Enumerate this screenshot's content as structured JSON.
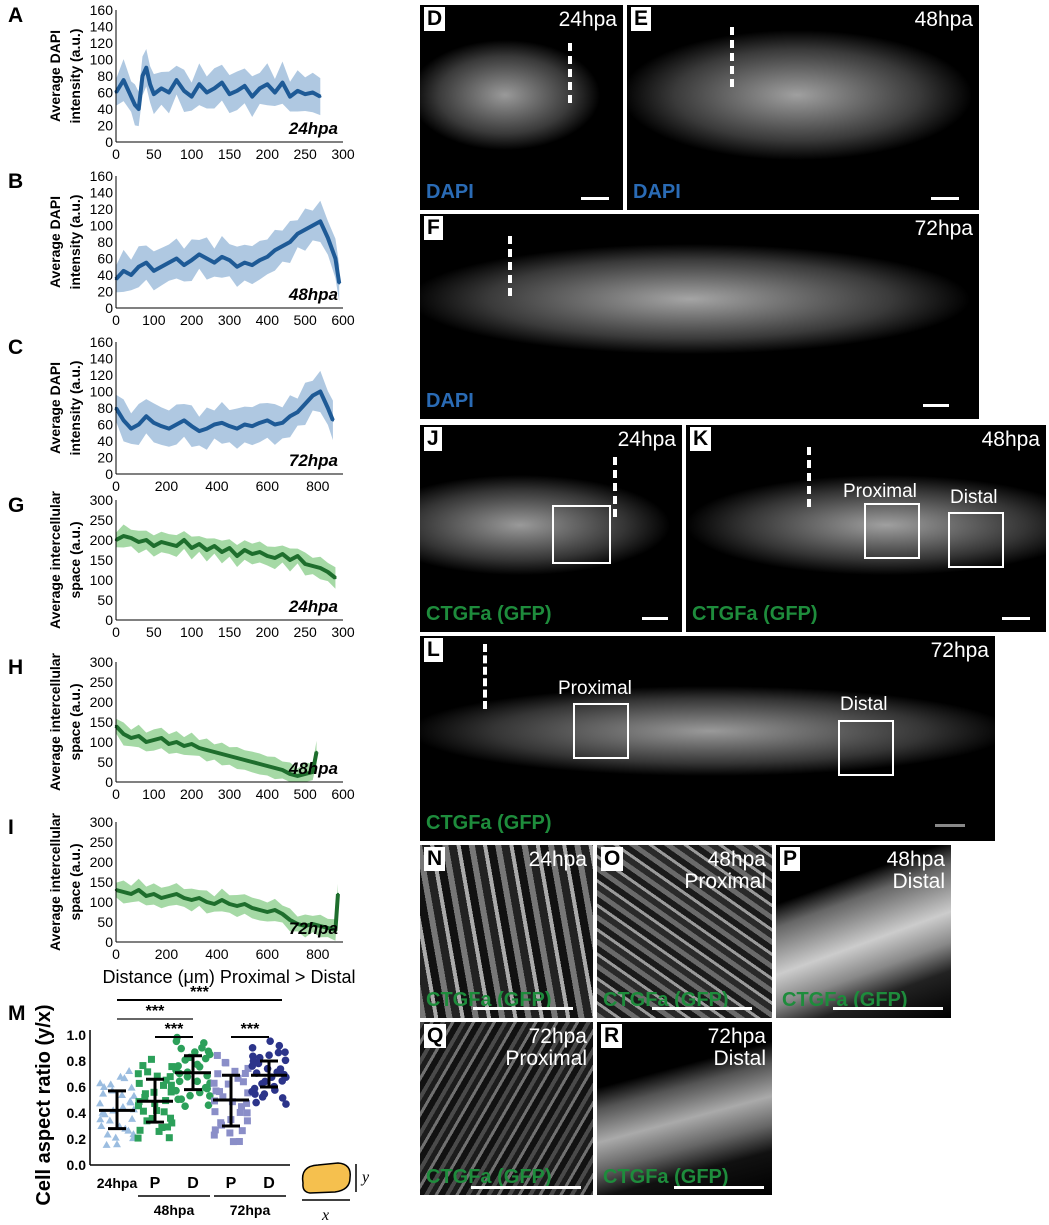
{
  "colors": {
    "dapi": "#1e5a96",
    "dapi_light": "#9bbad9",
    "ctgf": "#1e6e2d",
    "ctgf_light": "#8fcf8f",
    "gfp_label": "#1e8c3c",
    "dapi_label": "#2a6bb5"
  },
  "shared_xlabel": "Distance (μm) Proximal > Distal",
  "chart_data": [
    {
      "panel": "A",
      "type": "line",
      "ylabel": [
        "Average DAPI",
        "intensity (a.u.)"
      ],
      "annotation": "24hpa",
      "xlim": [
        0,
        300
      ],
      "ylim": [
        0,
        160
      ],
      "xticks": [
        0,
        50,
        100,
        150,
        200,
        250,
        300
      ],
      "yticks": [
        0,
        20,
        40,
        60,
        80,
        100,
        120,
        140,
        160
      ],
      "series": [
        {
          "x": [
            0,
            10,
            20,
            25,
            30,
            35,
            40,
            45,
            50,
            60,
            70,
            80,
            90,
            100,
            110,
            120,
            130,
            140,
            150,
            160,
            170,
            180,
            190,
            200,
            210,
            220,
            230,
            240,
            250,
            260,
            270
          ],
          "y": [
            60,
            75,
            55,
            45,
            40,
            80,
            90,
            70,
            58,
            65,
            60,
            75,
            62,
            55,
            70,
            60,
            65,
            72,
            58,
            62,
            68,
            55,
            65,
            70,
            60,
            72,
            55,
            62,
            58,
            60,
            55
          ]
        }
      ]
    },
    {
      "panel": "B",
      "type": "line",
      "ylabel": [
        "Average DAPI",
        "intensity (a.u.)"
      ],
      "annotation": "48hpa",
      "xlim": [
        0,
        600
      ],
      "ylim": [
        0,
        160
      ],
      "xticks": [
        0,
        100,
        200,
        300,
        400,
        500,
        600
      ],
      "yticks": [
        0,
        20,
        40,
        60,
        80,
        100,
        120,
        140,
        160
      ],
      "series": [
        {
          "x": [
            0,
            20,
            40,
            60,
            80,
            100,
            120,
            140,
            160,
            180,
            200,
            220,
            240,
            260,
            280,
            300,
            320,
            340,
            360,
            380,
            400,
            420,
            440,
            460,
            480,
            500,
            520,
            540,
            560,
            580,
            590
          ],
          "y": [
            35,
            45,
            40,
            50,
            55,
            45,
            50,
            55,
            60,
            52,
            58,
            65,
            60,
            55,
            62,
            58,
            50,
            55,
            52,
            58,
            62,
            70,
            75,
            80,
            90,
            95,
            100,
            105,
            85,
            60,
            30
          ]
        }
      ]
    },
    {
      "panel": "C",
      "type": "line",
      "ylabel": [
        "Average DAPI",
        "intensity (a.u.)"
      ],
      "annotation": "72hpa",
      "xlim": [
        0,
        900
      ],
      "ylim": [
        0,
        160
      ],
      "xticks": [
        0,
        200,
        400,
        600,
        800
      ],
      "yticks": [
        0,
        20,
        40,
        60,
        80,
        100,
        120,
        140,
        160
      ],
      "series": [
        {
          "x": [
            0,
            30,
            60,
            90,
            120,
            150,
            180,
            210,
            240,
            270,
            300,
            330,
            360,
            390,
            420,
            450,
            480,
            510,
            540,
            570,
            600,
            630,
            660,
            690,
            720,
            750,
            780,
            810,
            840,
            860
          ],
          "y": [
            80,
            65,
            55,
            60,
            70,
            62,
            58,
            55,
            60,
            65,
            58,
            52,
            55,
            60,
            62,
            58,
            55,
            60,
            58,
            62,
            65,
            60,
            62,
            70,
            75,
            85,
            95,
            100,
            80,
            65
          ]
        }
      ]
    },
    {
      "panel": "G",
      "type": "line",
      "ylabel": [
        "Average intercellular",
        "space (a.u.)"
      ],
      "annotation": "24hpa",
      "xlim": [
        0,
        300
      ],
      "ylim": [
        0,
        300
      ],
      "xticks": [
        0,
        50,
        100,
        150,
        200,
        250,
        300
      ],
      "yticks": [
        0,
        50,
        100,
        150,
        200,
        250,
        300
      ],
      "series": [
        {
          "x": [
            0,
            10,
            20,
            30,
            40,
            50,
            60,
            70,
            80,
            90,
            100,
            110,
            120,
            130,
            140,
            150,
            160,
            170,
            180,
            190,
            200,
            210,
            220,
            230,
            240,
            250,
            260,
            270,
            280,
            290
          ],
          "y": [
            200,
            210,
            205,
            195,
            200,
            185,
            195,
            190,
            185,
            200,
            180,
            190,
            175,
            185,
            170,
            180,
            160,
            175,
            165,
            170,
            160,
            155,
            165,
            150,
            160,
            140,
            135,
            130,
            120,
            105
          ]
        }
      ]
    },
    {
      "panel": "H",
      "type": "line",
      "ylabel": [
        "Average intercellular",
        "space (a.u.)"
      ],
      "annotation": "48hpa",
      "xlim": [
        0,
        600
      ],
      "ylim": [
        0,
        300
      ],
      "xticks": [
        0,
        100,
        200,
        300,
        400,
        500,
        600
      ],
      "yticks": [
        0,
        50,
        100,
        150,
        200,
        250,
        300
      ],
      "series": [
        {
          "x": [
            0,
            20,
            40,
            60,
            80,
            100,
            120,
            140,
            160,
            180,
            200,
            220,
            240,
            260,
            280,
            300,
            320,
            340,
            360,
            380,
            400,
            420,
            440,
            460,
            480,
            500,
            520,
            530
          ],
          "y": [
            140,
            120,
            110,
            115,
            100,
            105,
            110,
            95,
            100,
            90,
            95,
            85,
            80,
            75,
            70,
            65,
            60,
            55,
            50,
            45,
            40,
            35,
            30,
            20,
            15,
            20,
            25,
            75
          ]
        }
      ]
    },
    {
      "panel": "I",
      "type": "line",
      "ylabel": [
        "Average intercellular",
        "space (a.u.)"
      ],
      "annotation": "72hpa",
      "xlim": [
        0,
        900
      ],
      "ylim": [
        0,
        300
      ],
      "xticks": [
        0,
        200,
        400,
        600,
        800
      ],
      "yticks": [
        0,
        50,
        100,
        150,
        200,
        250,
        300
      ],
      "series": [
        {
          "x": [
            0,
            30,
            60,
            90,
            120,
            150,
            180,
            210,
            240,
            270,
            300,
            330,
            360,
            390,
            420,
            450,
            480,
            510,
            540,
            570,
            600,
            630,
            660,
            690,
            720,
            750,
            780,
            810,
            840,
            870,
            880
          ],
          "y": [
            130,
            125,
            120,
            130,
            115,
            120,
            110,
            115,
            120,
            110,
            105,
            110,
            100,
            95,
            105,
            95,
            90,
            95,
            85,
            80,
            75,
            80,
            70,
            55,
            45,
            40,
            45,
            40,
            35,
            30,
            120
          ]
        }
      ]
    },
    {
      "panel": "M",
      "type": "scatter",
      "ylabel": "Cell aspect ratio (y/x)",
      "ylim": [
        0,
        1.0
      ],
      "yticks": [
        "0.0",
        "0.2",
        "0.4",
        "0.6",
        "0.8",
        "1.0"
      ],
      "categories": [
        "24hpa",
        "P",
        "D",
        "P",
        "D"
      ],
      "group_labels": [
        "48hpa",
        "72hpa"
      ],
      "series": [
        {
          "category": "24hpa",
          "median": 0.42,
          "q1": 0.28,
          "q3": 0.57,
          "color": "#9bbde0",
          "marker": "triangle"
        },
        {
          "category": "48hpa P",
          "median": 0.49,
          "q1": 0.33,
          "q3": 0.66,
          "color": "#2ca05a",
          "marker": "square"
        },
        {
          "category": "48hpa D",
          "median": 0.71,
          "q1": 0.58,
          "q3": 0.84,
          "color": "#2ca05a",
          "marker": "circle"
        },
        {
          "category": "72hpa P",
          "median": 0.5,
          "q1": 0.3,
          "q3": 0.69,
          "color": "#8a8ec8",
          "marker": "square"
        },
        {
          "category": "72hpa D",
          "median": 0.69,
          "q1": 0.6,
          "q3": 0.8,
          "color": "#2c348a",
          "marker": "circle"
        }
      ],
      "significance": [
        "***",
        "***",
        "***",
        "***"
      ],
      "axis_symbols": [
        "y",
        "x"
      ]
    }
  ],
  "micrographs": [
    {
      "id": "D",
      "time": "24hpa",
      "stain": "DAPI"
    },
    {
      "id": "E",
      "time": "48hpa",
      "stain": "DAPI"
    },
    {
      "id": "F",
      "time": "72hpa",
      "stain": "DAPI"
    },
    {
      "id": "J",
      "time": "24hpa",
      "stain": "CTGFa (GFP)"
    },
    {
      "id": "K",
      "time": "48hpa",
      "stain": "CTGFa (GFP)",
      "regions": [
        "Proximal",
        "Distal"
      ]
    },
    {
      "id": "L",
      "time": "72hpa",
      "stain": "CTGFa (GFP)",
      "regions": [
        "Proximal",
        "Distal"
      ]
    },
    {
      "id": "N",
      "time": "24hpa",
      "stain": "CTGFa (GFP)"
    },
    {
      "id": "O",
      "time": "48hpa",
      "sub": "Proximal",
      "stain": "CTGFa (GFP)"
    },
    {
      "id": "P",
      "time": "48hpa",
      "sub": "Distal",
      "stain": "CTGFa (GFP)"
    },
    {
      "id": "Q",
      "time": "72hpa",
      "sub": "Proximal",
      "stain": "CTGFa (GFP)"
    },
    {
      "id": "R",
      "time": "72hpa",
      "sub": "Distal",
      "stain": "CTGFa (GFP)"
    }
  ]
}
